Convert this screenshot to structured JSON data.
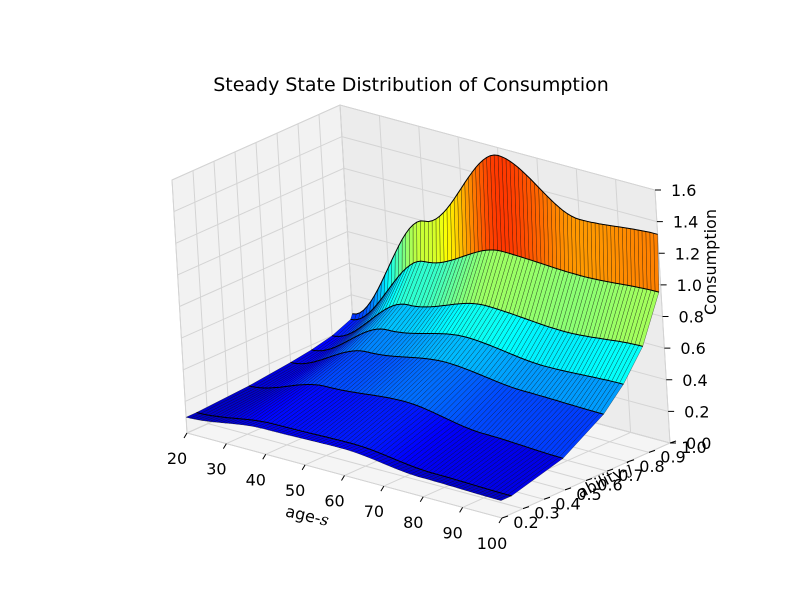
{
  "chart_data": {
    "type": "surface3d",
    "title": "Steady State Distribution of Consumption",
    "xlabel": "age-",
    "xlabel_italic": "s",
    "ylabel": "ability-",
    "ylabel_italic": "j",
    "zlabel": "Consumption",
    "xlim": [
      20,
      100
    ],
    "ylim": [
      0.2,
      1.0
    ],
    "zlim": [
      0.0,
      1.6
    ],
    "xticks": [
      "20",
      "30",
      "40",
      "50",
      "60",
      "70",
      "80",
      "90",
      "100"
    ],
    "yticks": [
      "0.2",
      "0.3",
      "0.4",
      "0.5",
      "0.6",
      "0.7",
      "0.8",
      "0.9",
      "1.0"
    ],
    "zticks": [
      "0.0",
      "0.2",
      "0.4",
      "0.6",
      "0.8",
      "1.0",
      "1.2",
      "1.4",
      "1.6"
    ],
    "colormap": "jet",
    "grid": true,
    "ability_groups": [
      0.25,
      0.5,
      0.7,
      0.8,
      0.9,
      0.99,
      1.0
    ],
    "series": [
      {
        "ability": 0.25,
        "age": [
          20,
          40,
          60,
          80,
          100
        ],
        "consumption": [
          0.1,
          0.16,
          0.17,
          0.12,
          0.11
        ]
      },
      {
        "ability": 0.5,
        "age": [
          20,
          40,
          60,
          80,
          100
        ],
        "consumption": [
          0.12,
          0.25,
          0.29,
          0.22,
          0.2
        ]
      },
      {
        "ability": 0.7,
        "age": [
          20,
          40,
          60,
          80,
          100
        ],
        "consumption": [
          0.15,
          0.35,
          0.42,
          0.37,
          0.36
        ]
      },
      {
        "ability": 0.8,
        "age": [
          20,
          40,
          60,
          80,
          100
        ],
        "consumption": [
          0.17,
          0.43,
          0.52,
          0.47,
          0.49
        ]
      },
      {
        "ability": 0.9,
        "age": [
          20,
          40,
          60,
          80,
          100
        ],
        "consumption": [
          0.2,
          0.53,
          0.66,
          0.63,
          0.67
        ]
      },
      {
        "ability": 0.99,
        "age": [
          20,
          40,
          60,
          80,
          100
        ],
        "consumption": [
          0.25,
          0.75,
          0.95,
          0.93,
          0.96
        ]
      },
      {
        "ability": 1.0,
        "age": [
          20,
          40,
          60,
          80,
          100
        ],
        "consumption": [
          0.28,
          1.0,
          1.55,
          1.28,
          1.32
        ]
      }
    ]
  }
}
